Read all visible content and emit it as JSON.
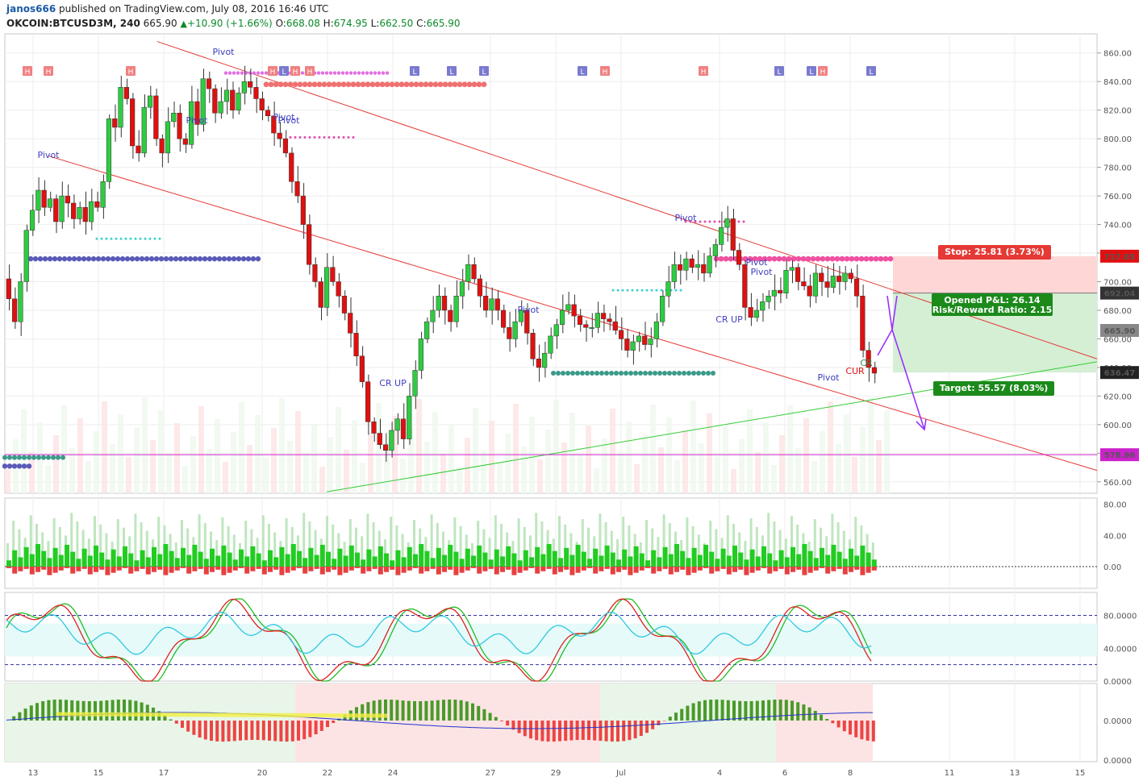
{
  "header": {
    "author": "janos666",
    "published_text": "published on TradingView.com, July 08, 2016 16:46 UTC",
    "symbol": "OKCOIN:BTCUSD3M, 240",
    "last": "665.90",
    "change": "+10.90 (+1.66%)",
    "o_label": "O:",
    "o": "668.08",
    "h_label": "H:",
    "h": "674.95",
    "l_label": "L:",
    "l": "662.50",
    "c_label": "C:",
    "c": "665.90"
  },
  "colors": {
    "up": "#2ecc40",
    "down": "#e01010",
    "trend_red": "#e53935",
    "trend_green": "#33cc33",
    "magenta": "#cc22cc",
    "stop_zone": "#ffd6d6",
    "target_zone": "#d5efd5",
    "arrow": "#9b30ff"
  },
  "chart_data": [
    {
      "type": "candlestick",
      "panel": "price",
      "y_ticks": [
        560,
        580,
        600,
        620,
        640,
        660,
        680,
        700,
        720,
        740,
        760,
        780,
        800,
        820,
        840,
        860
      ],
      "y_tick_labels": [
        "560.00",
        "580.00",
        "600.00",
        "620.00",
        "640.00",
        "660.00",
        "680.00",
        "700.00",
        "720.00",
        "740.00",
        "760.00",
        "780.00",
        "800.00",
        "820.00",
        "840.00",
        "860.00"
      ],
      "ylim": [
        552,
        870
      ],
      "x_tick_labels": [
        "13",
        "15",
        "17",
        "20",
        "22",
        "24",
        "27",
        "29",
        "Jul",
        "4",
        "6",
        "8",
        "11",
        "13",
        "15"
      ],
      "price_labels": [
        {
          "value": 717.85,
          "text": "717.85",
          "color": "#e01010"
        },
        {
          "value": 692.04,
          "text": "692.04",
          "color": "#333333"
        },
        {
          "value": 665.9,
          "text": "665.90",
          "color": "#888888"
        },
        {
          "value": 636.47,
          "text": "636.47",
          "color": "#222222"
        },
        {
          "value": 578.96,
          "text": "578.96",
          "color": "#cc22cc"
        }
      ],
      "candle_path": [
        702,
        688,
        672,
        700,
        736,
        750,
        764,
        752,
        758,
        742,
        760,
        755,
        744,
        752,
        742,
        756,
        752,
        770,
        814,
        808,
        836,
        828,
        795,
        790,
        822,
        830,
        800,
        790,
        812,
        818,
        800,
        796,
        826,
        810,
        842,
        835,
        818,
        826,
        834,
        820,
        832,
        840,
        836,
        828,
        820,
        816,
        804,
        800,
        790,
        770,
        760,
        740,
        712,
        700,
        682,
        710,
        700,
        690,
        678,
        664,
        648,
        630,
        602,
        594,
        586,
        582,
        596,
        604,
        590,
        620,
        638,
        660,
        672,
        680,
        690,
        680,
        672,
        690,
        700,
        712,
        702,
        690,
        680,
        688,
        680,
        668,
        660,
        672,
        680,
        664,
        646,
        640,
        650,
        662,
        670,
        680,
        684,
        676,
        670,
        668,
        668,
        678,
        674,
        672,
        666,
        660,
        652,
        658,
        662,
        656,
        660,
        672,
        690,
        700,
        712,
        708,
        716,
        710,
        712,
        706,
        718,
        726,
        738,
        744,
        722,
        712,
        682,
        675,
        680,
        686,
        690,
        694,
        692,
        708,
        710,
        700,
        697,
        690,
        706,
        700,
        696,
        704,
        700,
        706,
        702,
        690,
        652,
        640,
        636,
        648,
        652,
        656,
        660,
        662,
        666
      ],
      "annotations": [
        {
          "text": "Pivot",
          "color": "#4040c0"
        },
        {
          "text": "Pivot",
          "color": "#4040c0"
        },
        {
          "text": "Pivot",
          "color": "#4040c0"
        },
        {
          "text": "Pivot",
          "color": "#4040c0"
        },
        {
          "text": "Pivot",
          "color": "#4040c0"
        },
        {
          "text": "Pivot",
          "color": "#4040c0"
        },
        {
          "text": "Pivot",
          "color": "#4040c0"
        },
        {
          "text": "Pivot",
          "color": "#4040c0"
        },
        {
          "text": "Pivot",
          "color": "#4040c0"
        },
        {
          "text": "Pivot",
          "color": "#4040c0"
        },
        {
          "text": "CR UP",
          "color": "#4040c0"
        },
        {
          "text": "CR UP",
          "color": "#4040c0"
        },
        {
          "text": "CR",
          "color": "#2e8b57"
        },
        {
          "text": "CUR",
          "color": "#e01010"
        }
      ],
      "stop_label": "Stop: 25.81 (3.73%)",
      "pl_label": "Opened P&L: 26.14",
      "rr_label": "Risk/Reward Ratio: 2.15",
      "target_label": "Target: 55.57 (8.03%)",
      "position": {
        "stop": 717.85,
        "entry": 692.04,
        "target": 636.47
      }
    },
    {
      "type": "histogram",
      "panel": "volume-oscillator",
      "y_tick_labels": [
        "80.00",
        "40.00",
        "0.00"
      ],
      "y_ticks": [
        80,
        40,
        0
      ],
      "ylim": [
        -28,
        88
      ]
    },
    {
      "type": "line",
      "panel": "stochastic",
      "y_tick_labels": [
        "80.0000",
        "40.0000",
        "0.0000"
      ],
      "y_ticks": [
        80,
        40,
        0
      ],
      "ylim": [
        0,
        108
      ]
    },
    {
      "type": "histogram",
      "panel": "macd",
      "y_tick_labels": [
        "0.0000"
      ],
      "y_ticks": [
        0
      ]
    }
  ]
}
